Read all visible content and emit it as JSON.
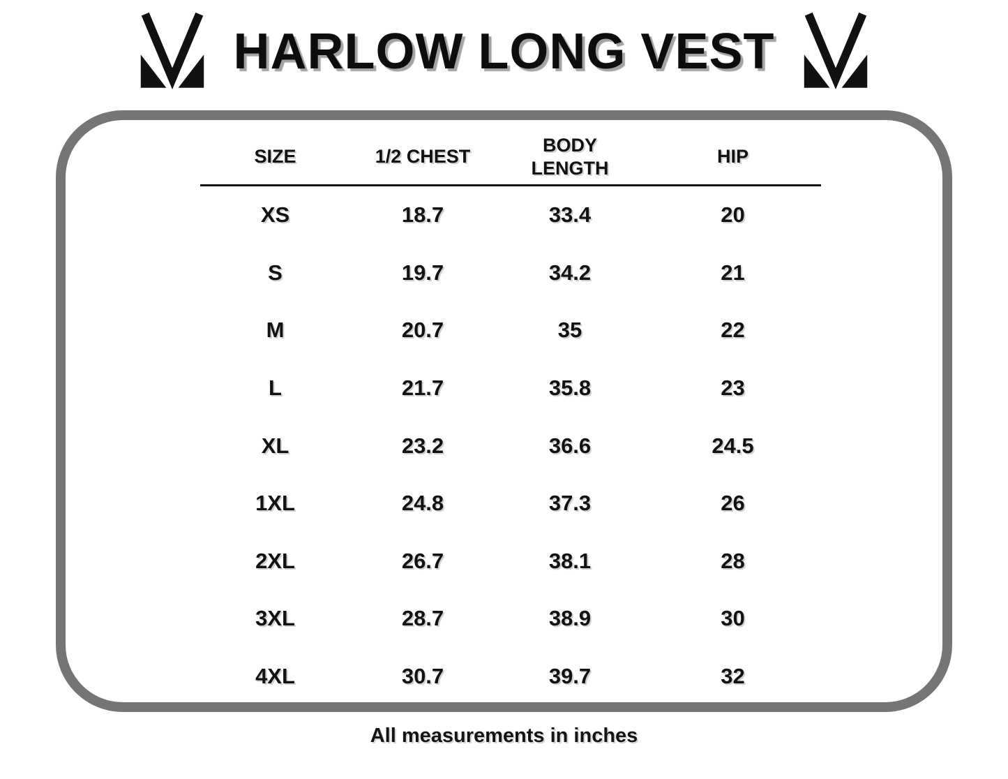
{
  "title": "HARLOW LONG VEST",
  "footer_note": "All measurements in inches",
  "icons": {
    "brand_logo": "MV-monogram"
  },
  "colors": {
    "background": "#ffffff",
    "text": "#121212",
    "frame_border": "#757575",
    "title_shadow": "#a3a3a3"
  },
  "chart_data": {
    "type": "table",
    "title": "HARLOW LONG VEST",
    "columns": [
      "SIZE",
      "1/2 CHEST",
      "BODY LENGTH",
      "HIP"
    ],
    "rows": [
      [
        "XS",
        "18.7",
        "33.4",
        "20"
      ],
      [
        "S",
        "19.7",
        "34.2",
        "21"
      ],
      [
        "M",
        "20.7",
        "35",
        "22"
      ],
      [
        "L",
        "21.7",
        "35.8",
        "23"
      ],
      [
        "XL",
        "23.2",
        "36.6",
        "24.5"
      ],
      [
        "1XL",
        "24.8",
        "37.3",
        "26"
      ],
      [
        "2XL",
        "26.7",
        "38.1",
        "28"
      ],
      [
        "3XL",
        "28.7",
        "38.9",
        "30"
      ],
      [
        "4XL",
        "30.7",
        "39.7",
        "32"
      ]
    ],
    "units": "inches",
    "footnote": "All measurements in inches",
    "layout": {
      "header_underline": true,
      "frame": "rounded-rectangle"
    }
  }
}
